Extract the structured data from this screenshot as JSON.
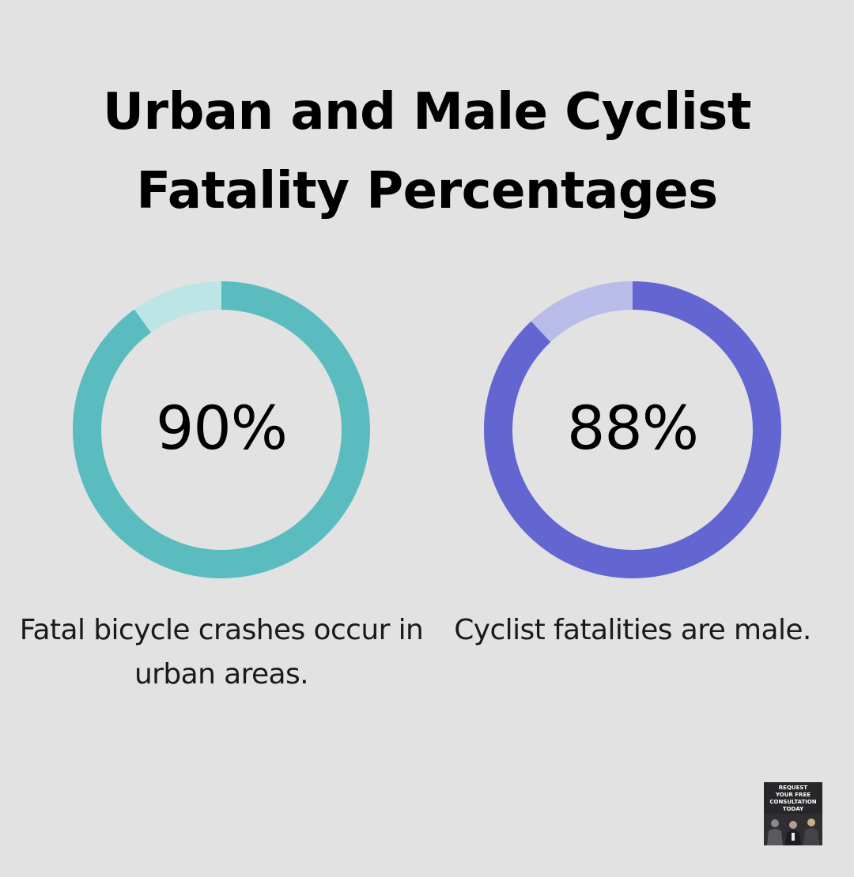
{
  "title": "Urban and Male Cyclist Fatality Percentages",
  "colors": {
    "background": "#e1e2e1",
    "urban_fill": "#5bbcc0",
    "urban_track": "#bde5e6",
    "male_fill": "#6366d1",
    "male_track": "#b9bbe9"
  },
  "chart_data": [
    {
      "type": "pie",
      "value": 90,
      "value_label": "90%",
      "caption": "Fatal bicycle crashes occur in urban areas."
    },
    {
      "type": "pie",
      "value": 88,
      "value_label": "88%",
      "caption": "Cyclist fatalities are male."
    }
  ],
  "cta": {
    "label": "REQUEST\nYOUR FREE\nCONSULTATION\nTODAY"
  }
}
